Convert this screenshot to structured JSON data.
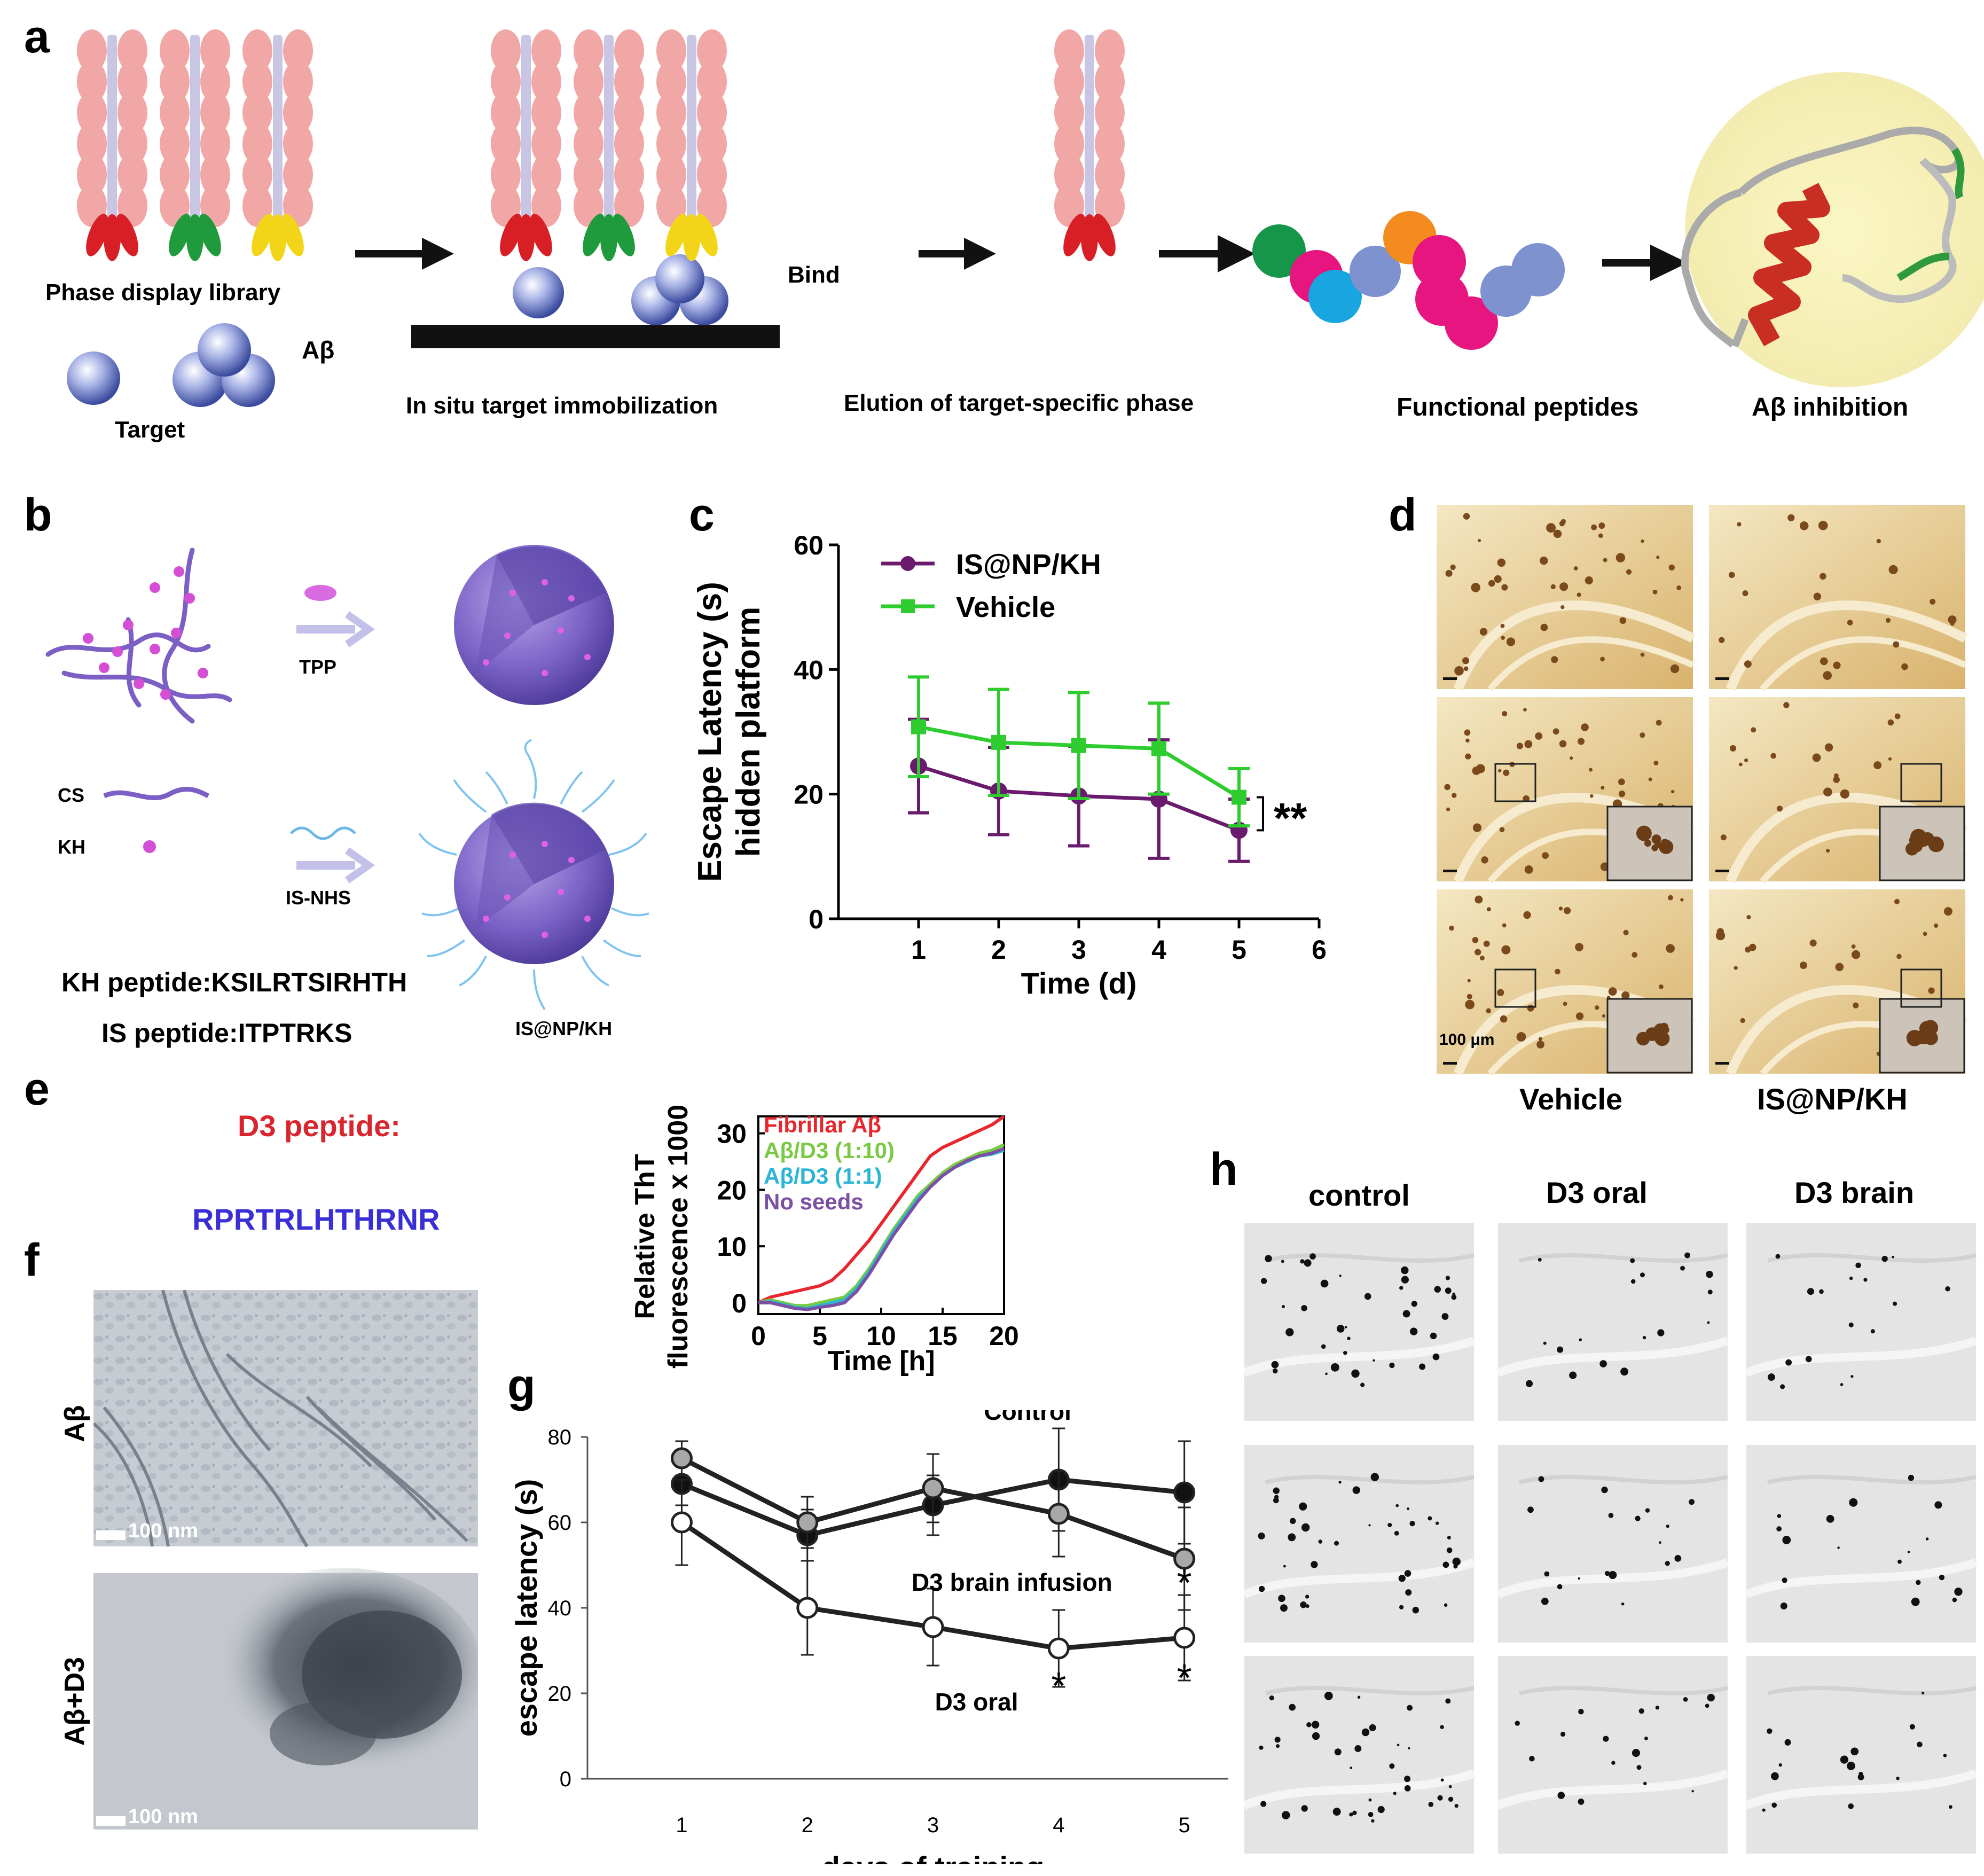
{
  "panels": {
    "a": "a",
    "b": "b",
    "c": "c",
    "d": "d",
    "e": "e",
    "f": "f",
    "g": "g",
    "h": "h"
  },
  "panel_a": {
    "library_label": "Phase display library",
    "abeta_label": "Aβ",
    "target_label": "Target",
    "immobilization_label": "In  situ target immobilization",
    "bind_label": "Bind",
    "elution_label": "Elution of target-specific phase",
    "functional_label": "Functional peptides",
    "inhibition_label": "Aβ inhibition"
  },
  "panel_b": {
    "tpp_label": "TPP",
    "cs_label": "CS",
    "kh_label": "KH",
    "isnhs_label": "IS-NHS",
    "kh_peptide": "KH peptide:KSILRTSIRHTH",
    "is_peptide": "IS peptide:ITPTRKS",
    "particle_label": "IS@NP/KH"
  },
  "panel_d": {
    "scale_label": "100 μm",
    "col_vehicle": "Vehicle",
    "col_isnp": "IS@NP/KH"
  },
  "panel_e": {
    "d3_title": "D3 peptide:",
    "d3_sequence": "RPRTRLHTHRNR"
  },
  "panel_f": {
    "row1_label": "Aβ",
    "row2_label": "Aβ+D3",
    "scale1": "100 nm",
    "scale2": "100 nm"
  },
  "panel_h": {
    "col1": "control",
    "col2": "D3 oral",
    "col3": "D3 brain"
  },
  "colors": {
    "purple": "#6a1b6e",
    "green": "#2ecc2e",
    "red_text": "#d9262e",
    "blue_text": "#3a2fd6",
    "tht_red": "#e8262e",
    "tht_green": "#7ac943",
    "tht_cyan": "#2ab5d6",
    "tht_purple": "#7b4fa3"
  },
  "chart_data": [
    {
      "id": "c",
      "type": "line",
      "ylabel": "Escape Latency (s)\nhidden platform",
      "xlabel": "Time (d)",
      "xlim": [
        0,
        6
      ],
      "ylim": [
        0,
        60
      ],
      "xticks": [
        1,
        2,
        3,
        4,
        5,
        6
      ],
      "yticks": [
        0,
        20,
        40,
        60
      ],
      "x": [
        1,
        2,
        3,
        4,
        5
      ],
      "series": [
        {
          "name": "IS@NP/KH",
          "values": [
            24.5,
            20.5,
            19.7,
            19.2,
            14.2
          ],
          "err": [
            7.5,
            7,
            8,
            9.5,
            5
          ]
        },
        {
          "name": "Vehicle",
          "values": [
            30.8,
            28.3,
            27.8,
            27.3,
            19.5
          ],
          "err": [
            8,
            8.5,
            8.5,
            7.3,
            4.6
          ]
        }
      ],
      "annotation": "**",
      "legend": "top-left"
    },
    {
      "id": "e",
      "type": "line",
      "ylabel": "Relative ThT\nfluorescence x 1000",
      "xlabel": "Time [h]",
      "xlim": [
        0,
        20
      ],
      "ylim": [
        -2,
        33
      ],
      "xticks": [
        0,
        5,
        10,
        15,
        20
      ],
      "yticks": [
        0,
        10,
        20,
        30
      ],
      "x": [
        0,
        1,
        2,
        3,
        4,
        5,
        6,
        7,
        8,
        9,
        10,
        11,
        12,
        13,
        14,
        15,
        16,
        17,
        18,
        19,
        20
      ],
      "series": [
        {
          "name": "Fibrillar Aβ",
          "values": [
            0,
            1,
            1.5,
            2,
            2.5,
            3,
            4,
            6,
            8.5,
            11,
            14,
            17,
            20,
            23,
            26,
            27.5,
            28.5,
            29.5,
            30.5,
            31.5,
            33
          ]
        },
        {
          "name": "Aβ/D3 (1:10)",
          "values": [
            0,
            0.5,
            0,
            -0.5,
            -0.5,
            0,
            0.5,
            1,
            3,
            6,
            9.5,
            13,
            16,
            19,
            21,
            23,
            24.5,
            25.5,
            26.5,
            27,
            28
          ]
        },
        {
          "name": "Aβ/D3 (1:1)",
          "values": [
            0,
            0.2,
            -0.3,
            -0.8,
            -1,
            -0.5,
            0,
            0.5,
            2.5,
            5.5,
            9,
            12.5,
            15.5,
            18.5,
            20.5,
            22.5,
            24,
            25,
            26,
            26.3,
            27
          ]
        },
        {
          "name": "No seeds",
          "values": [
            0,
            0,
            -0.5,
            -1,
            -1.2,
            -0.8,
            -0.5,
            0,
            2,
            5,
            8.5,
            12,
            15,
            18,
            20.5,
            22.5,
            24,
            25.2,
            26,
            26.5,
            27.3
          ]
        }
      ],
      "legend": "top-left"
    },
    {
      "id": "g",
      "type": "line",
      "ylabel": "escape latency (s)",
      "xlabel": "days of training",
      "xlim": [
        0.25,
        5.35
      ],
      "ylim": [
        0,
        80
      ],
      "xticks": [
        1,
        2,
        3,
        4,
        5
      ],
      "yticks": [
        0,
        20,
        40,
        60,
        80
      ],
      "x": [
        1,
        2,
        3,
        4,
        5
      ],
      "series": [
        {
          "name": "Control",
          "values": [
            69,
            57,
            64,
            70,
            67
          ],
          "err": [
            5,
            6,
            7,
            12,
            12
          ]
        },
        {
          "name": "D3 brain infusion",
          "values": [
            75,
            60,
            68,
            62,
            51.5
          ],
          "err": [
            4,
            6,
            8,
            10,
            12
          ]
        },
        {
          "name": "D3 oral",
          "values": [
            60,
            40,
            35.5,
            30.5,
            33
          ],
          "err": [
            10,
            11,
            9,
            9,
            10
          ]
        }
      ],
      "annotation_star": "*"
    }
  ]
}
